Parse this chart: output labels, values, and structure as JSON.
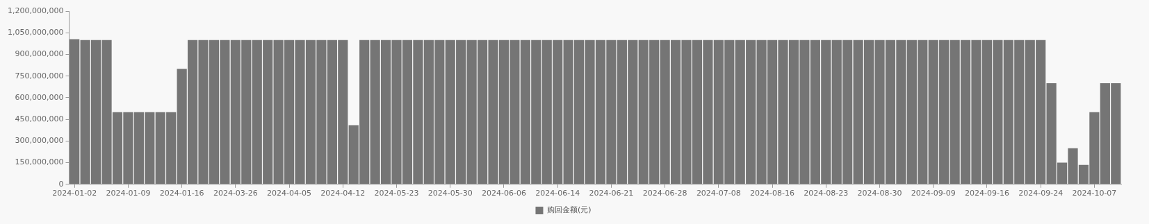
{
  "chart_data": {
    "type": "bar",
    "categories": [
      "2024-01-02",
      null,
      null,
      null,
      null,
      "2024-01-09",
      null,
      null,
      null,
      null,
      "2024-01-16",
      null,
      null,
      null,
      null,
      "2024-03-26",
      null,
      null,
      null,
      null,
      "2024-04-05",
      null,
      null,
      null,
      null,
      "2024-04-12",
      null,
      null,
      null,
      null,
      "2024-05-23",
      null,
      null,
      null,
      null,
      "2024-05-30",
      null,
      null,
      null,
      null,
      "2024-06-06",
      null,
      null,
      null,
      null,
      "2024-06-14",
      null,
      null,
      null,
      null,
      "2024-06-21",
      null,
      null,
      null,
      null,
      "2024-06-28",
      null,
      null,
      null,
      null,
      "2024-07-08",
      null,
      null,
      null,
      null,
      "2024-08-16",
      null,
      null,
      null,
      null,
      "2024-08-23",
      null,
      null,
      null,
      null,
      "2024-08-30",
      null,
      null,
      null,
      null,
      "2024-09-09",
      null,
      null,
      null,
      null,
      "2024-09-16",
      null,
      null,
      null,
      null,
      "2024-09-24",
      null,
      null,
      null,
      null,
      "2024-10-07",
      null,
      null
    ],
    "series": [
      {
        "name": "购回金额(元)",
        "color": "#757575",
        "values": [
          1005000000,
          1000000000,
          1000000000,
          1000000000,
          500000000,
          500000000,
          500000000,
          500000000,
          500000000,
          500000000,
          800000000,
          1000000000,
          1000000000,
          1000000000,
          1000000000,
          1000000000,
          1000000000,
          1000000000,
          1000000000,
          1000000000,
          1000000000,
          1000000000,
          1000000000,
          1000000000,
          1000000000,
          1000000000,
          410000000,
          1000000000,
          1000000000,
          1000000000,
          1000000000,
          1000000000,
          1000000000,
          1000000000,
          1000000000,
          1000000000,
          1000000000,
          1000000000,
          1000000000,
          1000000000,
          1000000000,
          1000000000,
          1000000000,
          1000000000,
          1000000000,
          1000000000,
          1000000000,
          1000000000,
          1000000000,
          1000000000,
          1000000000,
          1000000000,
          1000000000,
          1000000000,
          1000000000,
          1000000000,
          1000000000,
          1000000000,
          1000000000,
          1000000000,
          1000000000,
          1000000000,
          1000000000,
          1000000000,
          1000000000,
          1000000000,
          1000000000,
          1000000000,
          1000000000,
          1000000000,
          1000000000,
          1000000000,
          1000000000,
          1000000000,
          1000000000,
          1000000000,
          1000000000,
          1000000000,
          1000000000,
          1000000000,
          1000000000,
          1000000000,
          1000000000,
          1000000000,
          1000000000,
          1000000000,
          1000000000,
          1000000000,
          1000000000,
          1000000000,
          1000000000,
          700000000,
          150000000,
          250000000,
          135000000,
          500000000,
          700000000,
          700000000
        ]
      }
    ],
    "ylim": [
      0,
      1200000000
    ],
    "yticks": [
      0,
      {
        "value": 150000000,
        "label": "150,000,000"
      },
      {
        "value": 300000000,
        "label": "300,000,000"
      },
      {
        "value": 450000000,
        "label": "450,000,000"
      },
      {
        "value": 600000000,
        "label": "600,000,000"
      },
      {
        "value": 750000000,
        "label": "750,000,000"
      },
      {
        "value": 900000000,
        "label": "900,000,000"
      },
      {
        "value": 1050000000,
        "label": "1,050,000,000"
      },
      {
        "value": 1200000000,
        "label": "1,200,000,000"
      }
    ],
    "grid": false,
    "legend": "bottom"
  }
}
